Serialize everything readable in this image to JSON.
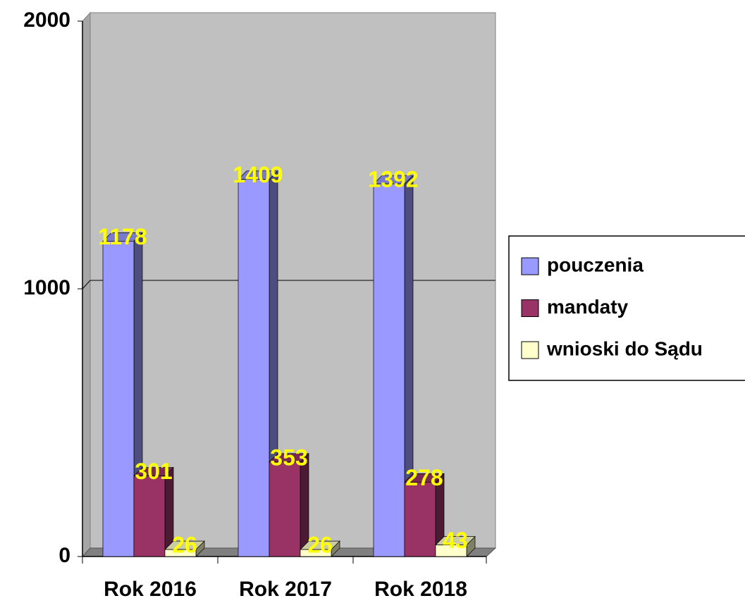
{
  "chart_data": {
    "type": "bar",
    "categories": [
      "Rok 2016",
      "Rok 2017",
      "Rok 2018"
    ],
    "series": [
      {
        "name": "pouczenia",
        "color": "#9999ff",
        "values": [
          1178,
          1409,
          1392
        ]
      },
      {
        "name": "mandaty",
        "color": "#993366",
        "values": [
          301,
          353,
          278
        ]
      },
      {
        "name": "wnioski do Sądu",
        "color": "#ffffcc",
        "values": [
          26,
          26,
          43
        ]
      }
    ],
    "ylim": [
      0,
      2000
    ],
    "yticks": [
      0,
      1000,
      2000
    ],
    "grid": true,
    "legend": "right"
  }
}
